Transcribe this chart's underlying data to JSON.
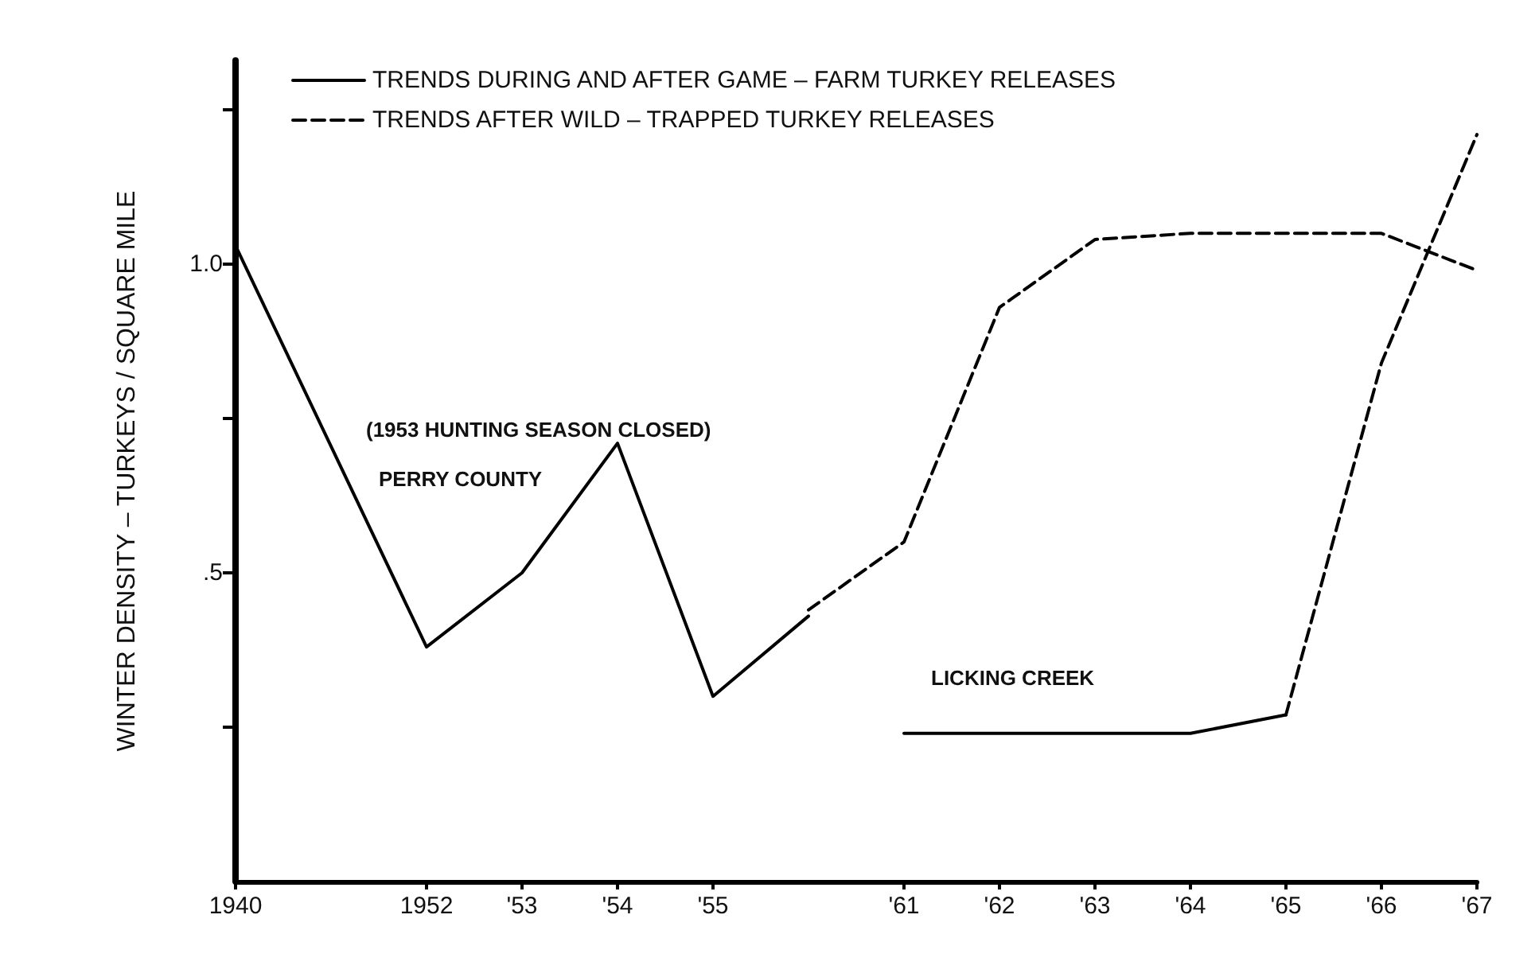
{
  "chart_data": {
    "type": "line",
    "ylabel": "WINTER DENSITY – TURKEYS / SQUARE MILE",
    "categories": [
      "1940",
      null,
      "1952",
      "'53",
      "'54",
      "'55",
      null,
      "'61",
      "'62",
      "'63",
      "'64",
      "'65",
      "'66",
      "'67"
    ],
    "series": [
      {
        "name": "TRENDS DURING AND AFTER GAME – FARM TURKEY RELEASES",
        "color": "#000000",
        "line_style": "solid",
        "values": [
          1.03,
          null,
          0.38,
          0.5,
          0.71,
          0.3,
          0.43,
          null,
          null,
          null,
          null,
          null,
          null,
          null
        ]
      },
      {
        "name": "TRENDS AFTER WILD – TRAPPED TURKEY RELEASES",
        "color": "#000000",
        "line_style": "dashed",
        "values": [
          null,
          null,
          null,
          null,
          null,
          null,
          0.44,
          0.55,
          0.93,
          1.04,
          1.05,
          1.05,
          1.05,
          0.99
        ]
      },
      {
        "color": "#000000",
        "line_style": "solid",
        "values": [
          null,
          null,
          null,
          null,
          null,
          null,
          null,
          0.24,
          0.24,
          0.24,
          0.24,
          0.27,
          null,
          null
        ]
      },
      {
        "color": "#000000",
        "line_style": "dashed",
        "values": [
          null,
          null,
          null,
          null,
          null,
          null,
          null,
          null,
          null,
          null,
          null,
          0.27,
          0.84,
          1.21
        ]
      }
    ],
    "ylim": [
      0,
      1.33
    ],
    "yticks": [
      {
        "value": 0.25,
        "label": null
      },
      {
        "value": 0.5,
        "label": ".5"
      },
      {
        "value": 0.75,
        "label": null
      },
      {
        "value": 1.0,
        "label": "1.0"
      },
      {
        "value": 1.25,
        "label": null
      }
    ],
    "annotations": [
      "(1953 HUNTING SEASON CLOSED)",
      "PERRY COUNTY",
      "LICKING CREEK"
    ],
    "legend": "top left",
    "grid": false,
    "marker": "none"
  }
}
